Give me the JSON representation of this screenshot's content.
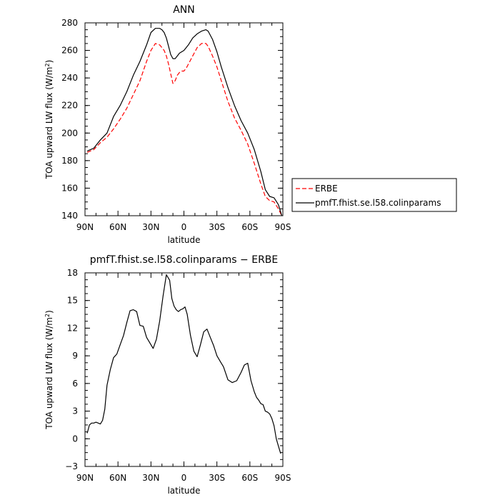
{
  "chart_data": [
    {
      "type": "line",
      "title": "ANN",
      "xlabel": "latitude",
      "ylabel": "TOA upward LW flux (W/m",
      "ylabel_sup": "2",
      "ylabel_close": ")",
      "xlim": [
        90,
        -90
      ],
      "ylim": [
        140,
        280
      ],
      "xticks": [
        90,
        60,
        30,
        0,
        -30,
        -60,
        -90
      ],
      "xtick_labels": [
        "90N",
        "60N",
        "30N",
        "0",
        "30S",
        "60S",
        "90S"
      ],
      "yticks": [
        140,
        160,
        180,
        200,
        220,
        240,
        260,
        280
      ],
      "ytick_labels": [
        "140",
        "160",
        "180",
        "200",
        "220",
        "240",
        "260",
        "280"
      ],
      "legend": "outside-right",
      "series": [
        {
          "name": "ERBE",
          "color": "#ff0000",
          "dash": "dashed",
          "x": [
            88,
            82,
            76,
            70,
            64,
            58,
            52,
            46,
            40,
            34,
            30,
            26,
            22,
            20,
            18,
            16,
            14,
            12,
            10,
            8,
            6,
            4,
            2,
            0,
            -2,
            -4,
            -8,
            -12,
            -16,
            -20,
            -22,
            -26,
            -30,
            -34,
            -40,
            -46,
            -52,
            -58,
            -64,
            -70,
            -74,
            -78,
            -82,
            -86,
            -89
          ],
          "y": [
            186,
            188,
            193,
            197,
            203,
            210,
            218,
            228,
            238,
            252,
            260,
            265,
            264,
            262,
            260,
            256,
            250,
            243,
            236,
            238,
            242,
            244,
            245,
            245,
            247,
            250,
            256,
            262,
            265,
            265,
            263,
            256,
            248,
            238,
            223,
            211,
            202,
            192,
            178,
            163,
            154,
            151,
            150,
            145,
            140
          ]
        },
        {
          "name": "pmfT.fhist.se.l58.colinparams",
          "color": "#000000",
          "dash": "solid",
          "x": [
            88,
            82,
            76,
            70,
            64,
            58,
            52,
            46,
            40,
            34,
            30,
            26,
            22,
            20,
            18,
            16,
            14,
            12,
            10,
            8,
            6,
            4,
            2,
            0,
            -2,
            -4,
            -8,
            -12,
            -16,
            -20,
            -22,
            -26,
            -30,
            -34,
            -40,
            -46,
            -52,
            -58,
            -64,
            -70,
            -74,
            -78,
            -82,
            -86,
            -89
          ],
          "y": [
            187,
            189,
            195,
            200,
            212,
            220,
            230,
            242,
            252,
            264,
            273,
            276,
            276,
            275,
            273,
            269,
            263,
            257,
            254,
            254,
            256,
            258,
            259,
            260,
            262,
            264,
            269,
            272,
            274,
            275,
            274,
            268,
            259,
            248,
            233,
            220,
            209,
            200,
            188,
            172,
            159,
            154,
            153,
            148,
            140
          ]
        }
      ]
    },
    {
      "type": "line",
      "title": "pmfT.fhist.se.l58.colinparams − ERBE",
      "xlabel": "latitude",
      "ylabel": "TOA upward LW flux (W/m",
      "ylabel_sup": "2",
      "ylabel_close": ")",
      "xlim": [
        90,
        -90
      ],
      "ylim": [
        -3,
        18
      ],
      "xticks": [
        90,
        60,
        30,
        0,
        -30,
        -60,
        -90
      ],
      "xtick_labels": [
        "90N",
        "60N",
        "30N",
        "0",
        "30S",
        "60S",
        "90S"
      ],
      "yticks": [
        -3,
        0,
        3,
        6,
        9,
        12,
        15,
        18
      ],
      "ytick_labels": [
        "−3",
        "0",
        "3",
        "6",
        "9",
        "12",
        "15",
        "18"
      ],
      "series": [
        {
          "color": "#000000",
          "dash": "solid",
          "x": [
            88,
            86,
            84,
            82,
            80,
            78,
            76,
            74,
            72,
            70,
            67,
            64,
            61,
            58,
            55,
            52,
            49,
            46,
            43,
            40,
            37,
            34,
            31,
            28,
            25,
            22,
            19,
            16,
            13,
            11,
            9,
            7,
            5,
            3,
            1,
            -1,
            -3,
            -6,
            -9,
            -12,
            -15,
            -18,
            -21,
            -24,
            -27,
            -30,
            -33,
            -36,
            -40,
            -44,
            -48,
            -52,
            -55,
            -58,
            -61,
            -64,
            -66,
            -68,
            -70,
            -72,
            -74,
            -76,
            -78,
            -80,
            -82,
            -84,
            -86,
            -88
          ],
          "y": [
            0.6,
            1.5,
            1.7,
            1.7,
            1.8,
            1.7,
            1.6,
            2.0,
            3.2,
            5.8,
            7.5,
            8.8,
            9.2,
            10.2,
            11.2,
            12.6,
            13.9,
            14.0,
            13.8,
            12.3,
            12.2,
            11.0,
            10.4,
            9.8,
            10.8,
            12.8,
            15.5,
            17.8,
            17.2,
            15.2,
            14.4,
            14.0,
            13.8,
            14.0,
            14.1,
            14.3,
            13.5,
            11.2,
            9.5,
            8.9,
            10.2,
            11.6,
            11.9,
            11.0,
            10.1,
            9.0,
            8.4,
            7.8,
            6.4,
            6.1,
            6.3,
            7.2,
            8.0,
            8.2,
            6.3,
            5.1,
            4.5,
            4.2,
            3.8,
            3.7,
            3.0,
            2.9,
            2.7,
            2.2,
            1.4,
            0.0,
            -0.8,
            -1.6
          ]
        }
      ]
    }
  ],
  "legend_entries": [
    {
      "label": "ERBE",
      "color": "#ff0000",
      "dash": "dashed"
    },
    {
      "label": "pmfT.fhist.se.l58.colinparams",
      "color": "#000000",
      "dash": "solid"
    }
  ]
}
